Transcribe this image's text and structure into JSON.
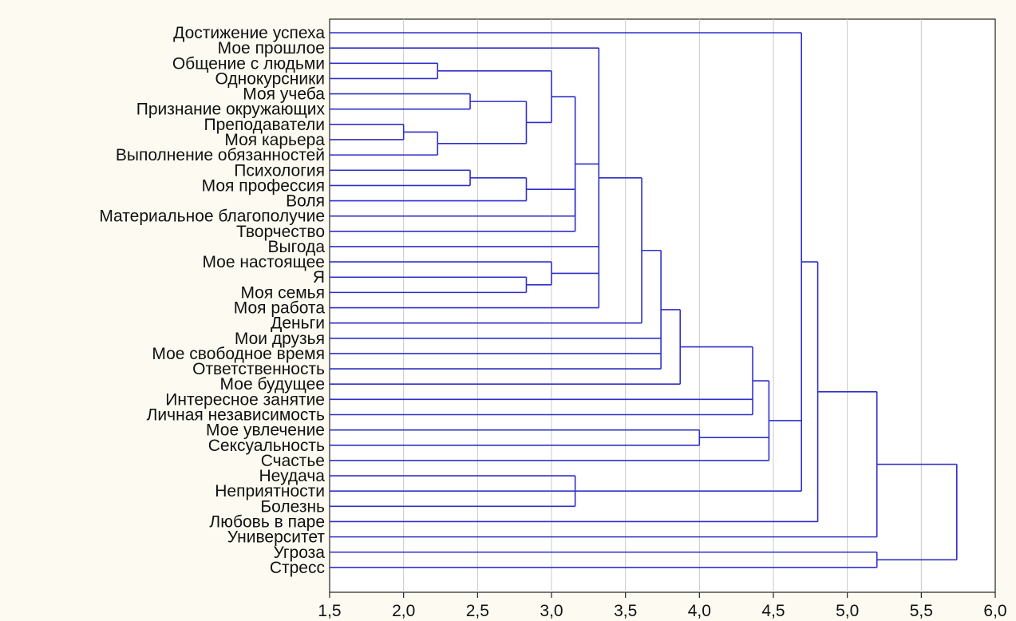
{
  "chart_data": {
    "type": "dendrogram",
    "orientation": "horizontal",
    "xlim": [
      1.5,
      6.0
    ],
    "x_ticks": [
      "1,5",
      "2,0",
      "2,5",
      "3,0",
      "3,5",
      "4,0",
      "4,5",
      "5,0",
      "5,5",
      "6,0"
    ],
    "x_tick_values": [
      1.5,
      2.0,
      2.5,
      3.0,
      3.5,
      4.0,
      4.5,
      5.0,
      5.5,
      6.0
    ],
    "grid": true,
    "colors": {
      "links": "#2f2fc8",
      "grid": "#c8c8c8",
      "frame": "#222222",
      "background": "#fdfbf1"
    },
    "leaves": [
      "Достижение успеха",
      "Мое прошлое",
      "Общение с людьми",
      "Однокурсники",
      "Моя учеба",
      "Признание окружающих",
      "Преподаватели",
      "Моя карьера",
      "Выполнение обязанностей",
      "Психология",
      "Моя профессия",
      "Воля",
      "Материальное благополучие",
      "Творчество",
      "Выгода",
      "Мое настоящее",
      "Я",
      "Моя семья",
      "Моя работа",
      "Деньги",
      "Мои друзья",
      "Мое свободное время",
      "Ответственность",
      "Мое будущее",
      "Интересное занятие",
      "Личная независимость",
      "Мое увлечение",
      "Сексуальность",
      "Счастье",
      "Неудача",
      "Неприятности",
      "Болезнь",
      "Любовь в паре",
      "Университет",
      "Угроза",
      "Стресс"
    ],
    "merges": [
      {
        "id": "c1",
        "height": 2.0,
        "children": [
          "Преподаватели",
          "Моя карьера"
        ]
      },
      {
        "id": "c2",
        "height": 2.23,
        "children": [
          "Общение с людьми",
          "Однокурсники"
        ]
      },
      {
        "id": "c3",
        "height": 2.23,
        "children": [
          "c1",
          "Выполнение обязанностей"
        ]
      },
      {
        "id": "c4",
        "height": 2.45,
        "children": [
          "Моя учеба",
          "Признание окружающих"
        ]
      },
      {
        "id": "c5",
        "height": 2.45,
        "children": [
          "Психология",
          "Моя профессия"
        ]
      },
      {
        "id": "c6",
        "height": 2.83,
        "children": [
          "c4",
          "c3"
        ]
      },
      {
        "id": "c7",
        "height": 2.83,
        "children": [
          "c5",
          "Воля"
        ]
      },
      {
        "id": "c8",
        "height": 2.83,
        "children": [
          "Я",
          "Моя семья"
        ]
      },
      {
        "id": "c9",
        "height": 3.0,
        "children": [
          "c2",
          "c6"
        ]
      },
      {
        "id": "c10",
        "height": 3.0,
        "children": [
          "Мое настоящее",
          "c8"
        ]
      },
      {
        "id": "c11",
        "height": 3.16,
        "children": [
          "c7",
          "Материальное благополучие"
        ]
      },
      {
        "id": "c12",
        "height": 3.16,
        "children": [
          "c9",
          "c11",
          "Творчество"
        ]
      },
      {
        "id": "c13",
        "height": 3.16,
        "children": [
          "Неудача",
          "Неприятности",
          "Болезнь"
        ]
      },
      {
        "id": "c14",
        "height": 3.32,
        "children": [
          "Мое прошлое",
          "c12",
          "Выгода",
          "c10",
          "Моя работа"
        ]
      },
      {
        "id": "c15",
        "height": 3.61,
        "children": [
          "c14",
          "Деньги"
        ]
      },
      {
        "id": "c16",
        "height": 3.74,
        "children": [
          "c15",
          "Мои друзья",
          "Мое свободное время",
          "Ответственность"
        ]
      },
      {
        "id": "c17",
        "height": 3.87,
        "children": [
          "c16",
          "Мое будущее"
        ]
      },
      {
        "id": "c18",
        "height": 4.0,
        "children": [
          "Мое увлечение",
          "Сексуальность"
        ]
      },
      {
        "id": "c19",
        "height": 4.36,
        "children": [
          "c17",
          "Интересное занятие",
          "Личная независимость"
        ]
      },
      {
        "id": "c20",
        "height": 4.47,
        "children": [
          "c19",
          "c18",
          "Счастье"
        ]
      },
      {
        "id": "c21",
        "height": 4.69,
        "children": [
          "Достижение успеха",
          "c20",
          "c13"
        ]
      },
      {
        "id": "c22",
        "height": 4.8,
        "children": [
          "c21",
          "Любовь в паре"
        ]
      },
      {
        "id": "c23",
        "height": 5.2,
        "children": [
          "c22",
          "Университет"
        ]
      },
      {
        "id": "c24",
        "height": 5.2,
        "children": [
          "Угроза",
          "Стресс"
        ]
      },
      {
        "id": "c25",
        "height": 5.74,
        "children": [
          "c23",
          "c24"
        ]
      }
    ]
  }
}
